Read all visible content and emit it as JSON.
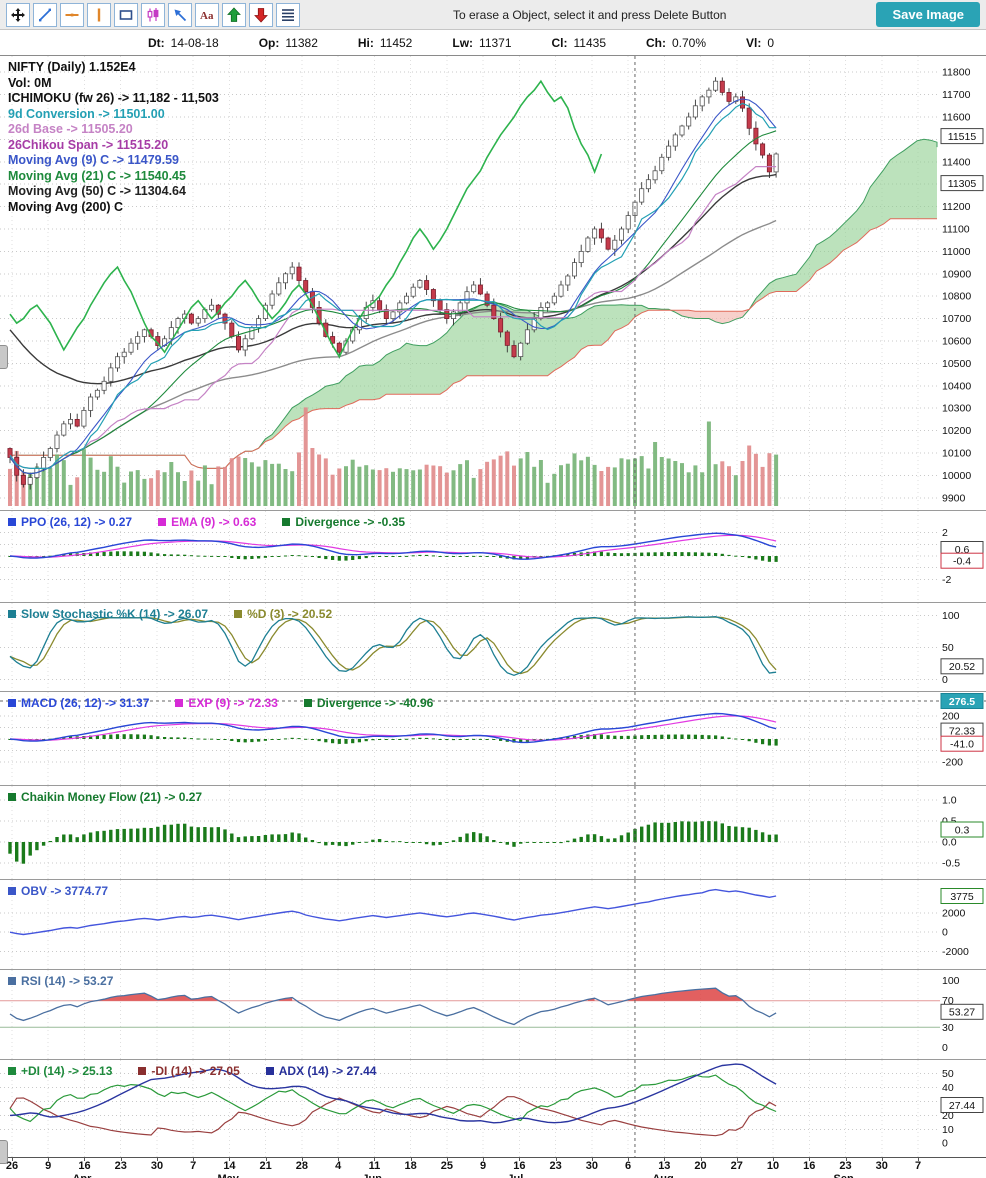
{
  "toolbar": {
    "message": "To erase a Object, select it and press Delete Button",
    "save_label": "Save Image",
    "save_color": "#2aa3b5"
  },
  "infobar": {
    "fields": [
      {
        "label": "Dt:",
        "value": "14-08-18"
      },
      {
        "label": "Op:",
        "value": "11382"
      },
      {
        "label": "Hi:",
        "value": "11452"
      },
      {
        "label": "Lw:",
        "value": "11371"
      },
      {
        "label": "Cl:",
        "value": "11435"
      },
      {
        "label": "Ch:",
        "value": "0.70%"
      },
      {
        "label": "Vl:",
        "value": "0"
      }
    ]
  },
  "xaxis": {
    "ticks": [
      "26",
      "9",
      "16",
      "23",
      "30",
      "7",
      "14",
      "21",
      "28",
      "4",
      "11",
      "18",
      "25",
      "9",
      "16",
      "23",
      "30",
      "6",
      "13",
      "20",
      "27",
      "10",
      "16",
      "23",
      "30",
      "7"
    ],
    "months": [
      {
        "tick": 2,
        "label": "Apr"
      },
      {
        "tick": 6,
        "label": "May"
      },
      {
        "tick": 10,
        "label": "Jun"
      },
      {
        "tick": 14,
        "label": "Jul"
      },
      {
        "tick": 18,
        "label": "Aug"
      },
      {
        "tick": 23,
        "label": "Sep"
      }
    ]
  },
  "crosshair": {
    "x_index": 93,
    "y_label": "276.5",
    "color": "#2aa3b5"
  },
  "panels": {
    "main": {
      "legend": [
        {
          "text": "NIFTY (Daily) 1.152E4",
          "color": "#111111"
        },
        {
          "text": "Vol: 0M",
          "color": "#111111"
        },
        {
          "text": "ICHIMOKU (fw 26) -> 11,182 - 11,503",
          "color": "#111111"
        },
        {
          "text": "9d Conversion -> 11501.00",
          "color": "#23a0b4"
        },
        {
          "text": "26d Base -> 11505.20",
          "color": "#c583c5"
        },
        {
          "text": "26Chikou Span -> 11515.20",
          "color": "#a63ca6"
        },
        {
          "text": "Moving Avg (9) C -> 11479.59",
          "color": "#3a56c8"
        },
        {
          "text": "Moving Avg (21) C -> 11540.45",
          "color": "#1e8a3c"
        },
        {
          "text": "Moving Avg (50) C -> 11304.64",
          "color": "#222222"
        },
        {
          "text": "Moving Avg (200) C",
          "color": "#111111"
        }
      ],
      "axis_range": {
        "from": 9900,
        "to": 11800,
        "step": 100
      },
      "badges": [
        {
          "v": 11515,
          "t": "11515",
          "s": "box"
        },
        {
          "v": 11305,
          "t": "11305",
          "s": "box"
        }
      ]
    },
    "ppo": {
      "legend": [
        {
          "text": "PPO (26, 12) -> 0.27",
          "color": "#2947d6"
        },
        {
          "text": "EMA (9) -> 0.63",
          "color": "#d62bd6"
        },
        {
          "text": "Divergence -> -0.35",
          "color": "#167a2e"
        }
      ],
      "axis": [
        {
          "v": 2,
          "t": "2"
        },
        {
          "v": -2,
          "t": "-2"
        }
      ],
      "badges": [
        {
          "v": 0.6,
          "t": "0.6",
          "s": "box"
        },
        {
          "v": -0.4,
          "t": "-0.4",
          "s": "boxRed"
        }
      ]
    },
    "stoch": {
      "legend": [
        {
          "text": "Slow Stochastic %K (14) -> 26.07",
          "color": "#1d7f93"
        },
        {
          "text": "%D (3) -> 20.52",
          "color": "#8a8a2e"
        }
      ],
      "axis": [
        {
          "v": 100,
          "t": "100"
        },
        {
          "v": 50,
          "t": "50"
        },
        {
          "v": 0,
          "t": "0"
        }
      ],
      "badges": [
        {
          "v": 20.52,
          "t": "20.52",
          "s": "box"
        }
      ]
    },
    "macd": {
      "legend": [
        {
          "text": "MACD (26, 12) -> 31.37",
          "color": "#2947d6"
        },
        {
          "text": "EXP (9) -> 72.33",
          "color": "#d62bd6"
        },
        {
          "text": "Divergence -> -40.96",
          "color": "#167a2e"
        }
      ],
      "axis": [
        {
          "v": 200,
          "t": "200"
        },
        {
          "v": -200,
          "t": "-200"
        }
      ],
      "badges": [
        {
          "v": 72.33,
          "t": "72.33",
          "s": "box"
        },
        {
          "v": -41,
          "t": "-41.0",
          "s": "boxRed"
        }
      ]
    },
    "cmf": {
      "legend": [
        {
          "text": "Chaikin Money Flow (21) -> 0.27",
          "color": "#167a2e"
        }
      ],
      "axis": [
        {
          "v": 1,
          "t": "1.0"
        },
        {
          "v": 0.5,
          "t": "0.5"
        },
        {
          "v": 0,
          "t": "0.0"
        },
        {
          "v": -0.5,
          "t": "-0.5"
        }
      ],
      "badges": [
        {
          "v": 0.3,
          "t": "0.3",
          "s": "boxGreen"
        }
      ]
    },
    "obv": {
      "legend": [
        {
          "text": "OBV -> 3774.77",
          "color": "#3a56c8"
        }
      ],
      "axis": [
        {
          "v": 2000,
          "t": "2000"
        },
        {
          "v": 0,
          "t": "0"
        },
        {
          "v": -2000,
          "t": "-2000"
        }
      ],
      "badges": [
        {
          "v": 3775,
          "t": "3775",
          "s": "boxGreen"
        }
      ]
    },
    "rsi": {
      "legend": [
        {
          "text": "RSI (14) -> 53.27",
          "color": "#4a6fa0"
        }
      ],
      "axis": [
        {
          "v": 100,
          "t": "100"
        },
        {
          "v": 70,
          "t": "70",
          "c": "#cc4444"
        },
        {
          "v": 30,
          "t": "30",
          "c": "#2a8a2a"
        },
        {
          "v": 0,
          "t": "0"
        }
      ],
      "badges": [
        {
          "v": 53.27,
          "t": "53.27",
          "s": "box"
        }
      ]
    },
    "adx": {
      "legend": [
        {
          "text": "+DI (14) -> 25.13",
          "color": "#1e8a3c"
        },
        {
          "text": "-DI (14) -> 27.05",
          "color": "#8a2f2f"
        },
        {
          "text": "ADX (14) -> 27.44",
          "color": "#27309a"
        }
      ],
      "axis": [
        {
          "v": 50,
          "t": "50"
        },
        {
          "v": 40,
          "t": "40"
        },
        {
          "v": 30,
          "t": "30"
        },
        {
          "v": 20,
          "t": "20"
        },
        {
          "v": 10,
          "t": "10"
        },
        {
          "v": 0,
          "t": "0"
        }
      ],
      "badges": [
        {
          "v": 27.44,
          "t": "27.44",
          "s": "box"
        }
      ]
    }
  },
  "chart_data": {
    "type": "candlestick+indicators",
    "symbol": "NIFTY",
    "timeframe": "Daily",
    "readouts": {
      "ohlc": {
        "dt": "14-08-18",
        "op": 11382,
        "hi": 11452,
        "lw": 11371,
        "cl": 11435,
        "ch": "0.70%",
        "vl": 0
      },
      "ichimoku_fw26": "11,182 - 11,503",
      "conversion9": 11501.0,
      "base26": 11505.2,
      "chikou26": 11515.2,
      "ma9": 11479.59,
      "ma21": 11540.45,
      "ma50": 11304.64,
      "ppo": 0.27,
      "ppo_ema9": 0.63,
      "ppo_div": -0.35,
      "stoch_k": 26.07,
      "stoch_d": 20.52,
      "macd": 31.37,
      "macd_exp9": 72.33,
      "macd_div": -40.96,
      "cmf": 0.27,
      "obv": 3774.77,
      "rsi": 53.27,
      "plus_di": 25.13,
      "minus_di": 27.05,
      "adx": 27.44
    },
    "closes": [
      10080,
      10000,
      9960,
      9990,
      10030,
      10080,
      10120,
      10180,
      10230,
      10250,
      10220,
      10290,
      10350,
      10380,
      10420,
      10480,
      10530,
      10550,
      10590,
      10620,
      10650,
      10620,
      10580,
      10610,
      10660,
      10700,
      10720,
      10680,
      10700,
      10740,
      10760,
      10720,
      10680,
      10620,
      10560,
      10610,
      10660,
      10700,
      10760,
      10810,
      10860,
      10900,
      10930,
      10870,
      10820,
      10750,
      10680,
      10620,
      10590,
      10550,
      10600,
      10650,
      10700,
      10750,
      10780,
      10740,
      10700,
      10730,
      10770,
      10800,
      10840,
      10870,
      10830,
      10780,
      10740,
      10700,
      10730,
      10770,
      10820,
      10850,
      10810,
      10760,
      10700,
      10640,
      10580,
      10530,
      10590,
      10650,
      10700,
      10750,
      10770,
      10800,
      10850,
      10890,
      10950,
      11000,
      11060,
      11100,
      11060,
      11010,
      11050,
      11100,
      11160,
      11220,
      11280,
      11320,
      11360,
      11420,
      11470,
      11520,
      11560,
      11600,
      11650,
      11690,
      11720,
      11760,
      11710,
      11670,
      11690,
      11640,
      11550,
      11480,
      11430,
      11355,
      11435
    ],
    "volume_spikes": {
      "44": 56,
      "96": 26,
      "104": 50
    },
    "crosshair_index": 93
  }
}
